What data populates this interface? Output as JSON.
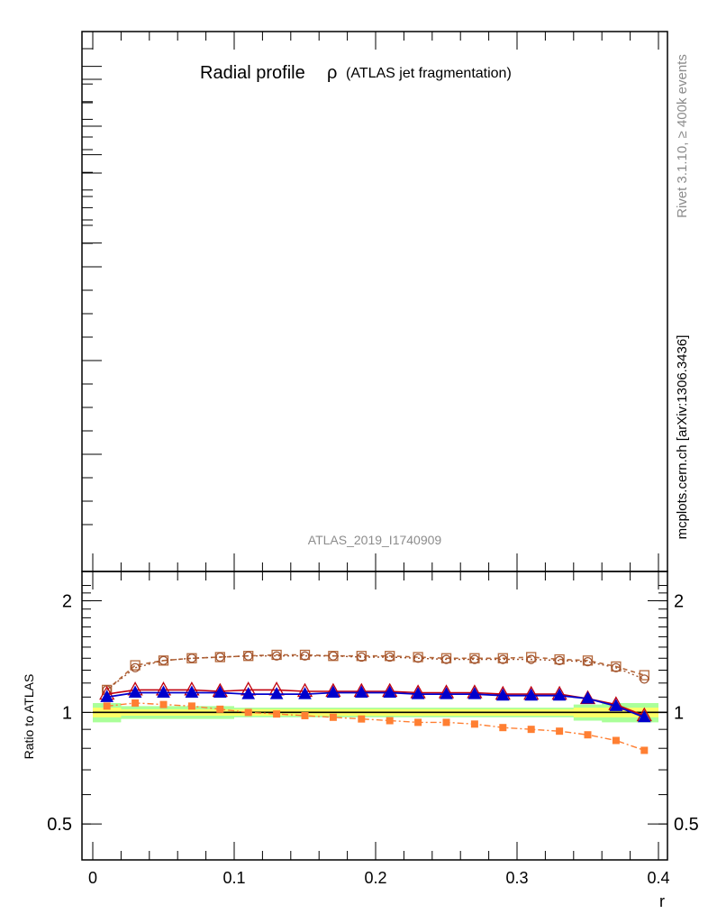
{
  "title_main": "Radial profile",
  "title_symbol": "ρ",
  "title_paren": "(ATLAS jet fragmentation)",
  "watermark": "ATLAS_2019_I1740909",
  "side_rivet": "Rivet 3.1.10, ≥ 400k events",
  "side_mcplots": "mcplots.cern.ch [arXiv:1306.3436]",
  "chart_data": {
    "type": "line",
    "title": "Radial profile ρ (ATLAS jet fragmentation)",
    "xlabel": "r",
    "ylabel": "Ratio to ATLAS",
    "xlim": [
      -0.01,
      0.4
    ],
    "ylim": [
      0.4,
      2.4
    ],
    "y_scale": "log",
    "x_ticks": [
      "0",
      "0.1",
      "0.2",
      "0.3",
      "0.4"
    ],
    "y_ticks": [
      "0.5",
      "1",
      "2"
    ],
    "y_tick_values": [
      0.5,
      1,
      2
    ],
    "x": [
      0.01,
      0.03,
      0.05,
      0.07,
      0.09,
      0.11,
      0.13,
      0.15,
      0.17,
      0.19,
      0.21,
      0.23,
      0.25,
      0.27,
      0.29,
      0.31,
      0.33,
      0.35,
      0.37,
      0.39
    ],
    "reference": {
      "value": 1.0,
      "color": "#000000",
      "band_inner": [
        0.03,
        0.02,
        0.02,
        0.02,
        0.02,
        0.02,
        0.02,
        0.02,
        0.02,
        0.02,
        0.02,
        0.02,
        0.02,
        0.02,
        0.02,
        0.02,
        0.02,
        0.03,
        0.03,
        0.03
      ],
      "band_outer": [
        0.06,
        0.04,
        0.04,
        0.04,
        0.04,
        0.03,
        0.03,
        0.03,
        0.03,
        0.03,
        0.03,
        0.03,
        0.03,
        0.03,
        0.03,
        0.03,
        0.03,
        0.05,
        0.06,
        0.06
      ],
      "band_inner_color": "#ffff66",
      "band_outer_color": "#aaff99"
    },
    "series": [
      {
        "values": [
          1.15,
          1.34,
          1.38,
          1.4,
          1.41,
          1.42,
          1.43,
          1.43,
          1.42,
          1.42,
          1.42,
          1.41,
          1.4,
          1.4,
          1.4,
          1.41,
          1.39,
          1.38,
          1.33,
          1.26
        ],
        "color": "#b5683a",
        "dash": "5,4",
        "marker": "open-square",
        "width": 1.6
      },
      {
        "values": [
          1.15,
          1.32,
          1.38,
          1.4,
          1.41,
          1.42,
          1.42,
          1.42,
          1.42,
          1.41,
          1.41,
          1.4,
          1.39,
          1.39,
          1.39,
          1.39,
          1.38,
          1.37,
          1.32,
          1.23
        ],
        "color": "#a0522d",
        "dash": "2,3",
        "marker": "open-circle",
        "width": 1.4
      },
      {
        "values": [
          1.12,
          1.15,
          1.15,
          1.15,
          1.14,
          1.15,
          1.15,
          1.14,
          1.14,
          1.14,
          1.14,
          1.13,
          1.13,
          1.13,
          1.12,
          1.12,
          1.12,
          1.09,
          1.05,
          0.98
        ],
        "color": "#c0000e",
        "dash": "",
        "marker": "open-triangle",
        "width": 1.6
      },
      {
        "values": [
          1.1,
          1.13,
          1.13,
          1.13,
          1.13,
          1.12,
          1.12,
          1.12,
          1.13,
          1.13,
          1.13,
          1.12,
          1.12,
          1.12,
          1.11,
          1.11,
          1.11,
          1.09,
          1.04,
          0.97
        ],
        "color": "#0000cc",
        "dash": "",
        "marker": "filled-triangle",
        "width": 1.8
      },
      {
        "values": [
          1.04,
          1.06,
          1.05,
          1.04,
          1.02,
          1.0,
          0.99,
          0.98,
          0.97,
          0.96,
          0.95,
          0.94,
          0.94,
          0.93,
          0.91,
          0.9,
          0.89,
          0.87,
          0.84,
          0.79
        ],
        "color": "#ff7f32",
        "dash": "7,3,2,3",
        "marker": "filled-square",
        "width": 1.4
      }
    ]
  }
}
